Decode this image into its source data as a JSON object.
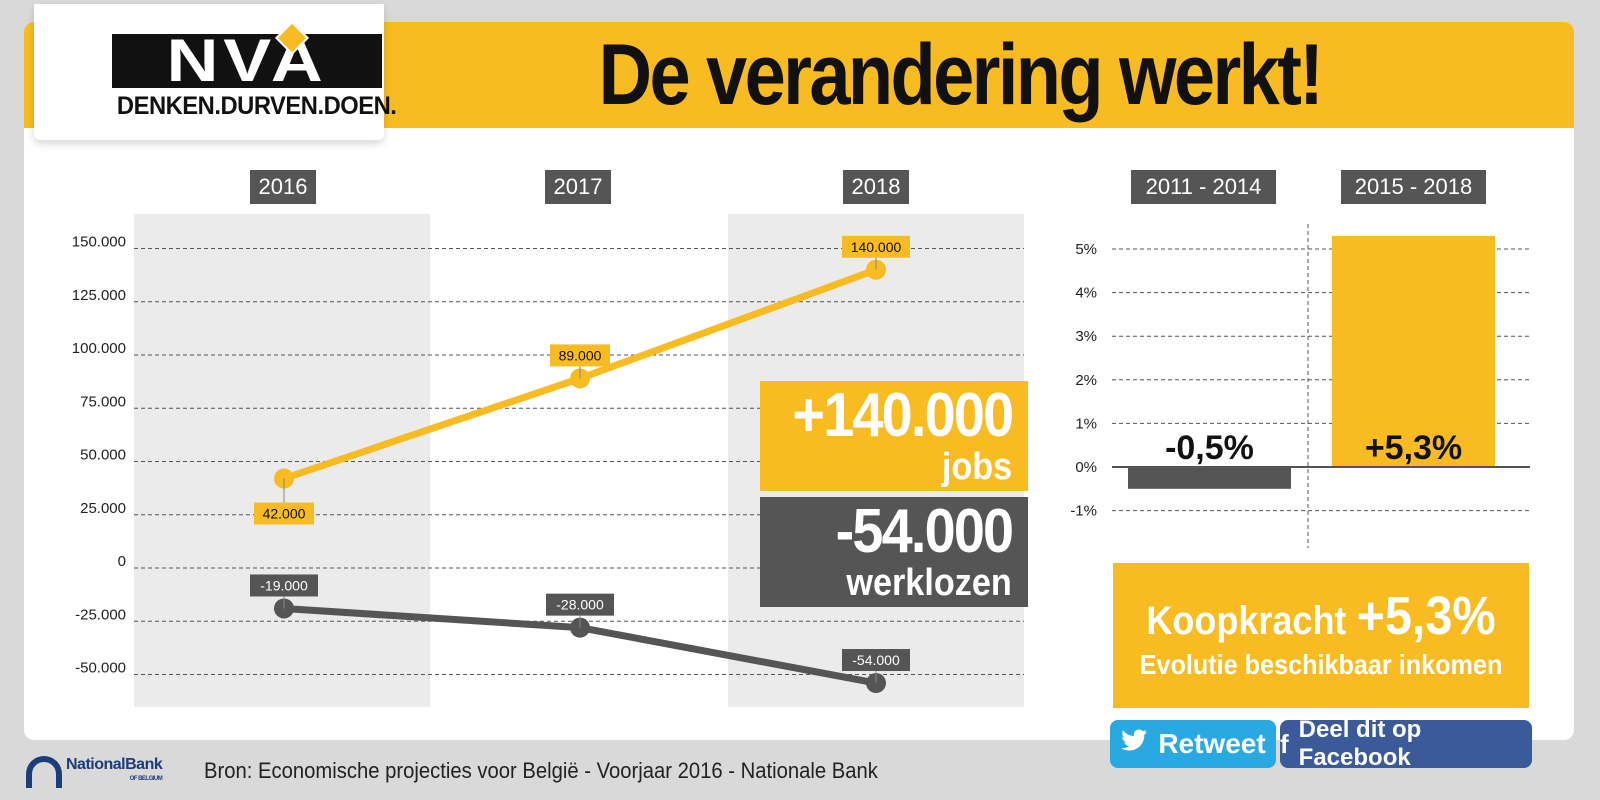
{
  "header": {
    "title": "De verandering werkt!"
  },
  "logo": {
    "letters": "NVA",
    "tagline": "DENKEN.DURVEN.DOEN."
  },
  "colors": {
    "accent": "#f8bc22",
    "dark": "#555555",
    "twitter": "#29a9e1",
    "facebook": "#3b5a9a"
  },
  "stats": {
    "jobs": {
      "value": "+140.000",
      "label": "jobs"
    },
    "unemployed": {
      "value": "-54.000",
      "label": "werklozen"
    }
  },
  "purchasing_power": {
    "label": "Koopkracht",
    "value": "+5,3%",
    "subtitle": "Evolutie beschikbaar inkomen"
  },
  "share": {
    "retweet": "Retweet",
    "facebook": "Deel dit op Facebook",
    "twitter_icon": "twitter-bird-icon",
    "facebook_icon": "facebook-f-icon"
  },
  "footer": {
    "bank_name": "NationalBank",
    "bank_sub": "OF BELGIUM",
    "source": "Bron: Economische projecties voor België - Voorjaar 2016 - Nationale Bank"
  },
  "chart_data": [
    {
      "type": "line",
      "categories": [
        "2016",
        "2017",
        "2018"
      ],
      "series": [
        {
          "values": [
            42000,
            89000,
            140000
          ],
          "labels": [
            "42.000",
            "89.000",
            "140.000"
          ],
          "color": "#f8bc22"
        },
        {
          "values": [
            -19000,
            -28000,
            -54000
          ],
          "labels": [
            "-19.000",
            "-28.000",
            "-54.000"
          ],
          "color": "#555555"
        }
      ],
      "yticks": [
        150000,
        125000,
        100000,
        75000,
        50000,
        25000,
        0,
        -25000,
        -50000
      ],
      "ytick_labels": [
        "150.000",
        "125.000",
        "100.000",
        "75.000",
        "50.000",
        "25.000",
        "0",
        "-25.000",
        "-50.000"
      ],
      "ylim": [
        -60000,
        160000
      ],
      "grid": true
    },
    {
      "type": "bar",
      "categories": [
        "2011 - 2014",
        "2015 - 2018"
      ],
      "values": [
        -0.5,
        5.3
      ],
      "value_labels": [
        "-0,5%",
        "+5,3%"
      ],
      "colors": [
        "#555555",
        "#f8bc22"
      ],
      "yticks": [
        5,
        4,
        3,
        2,
        1,
        0,
        -1
      ],
      "ytick_labels": [
        "5%",
        "4%",
        "3%",
        "2%",
        "1%",
        "0%",
        "-1%"
      ],
      "ylim": [
        -1.5,
        5.5
      ],
      "grid": true
    }
  ]
}
